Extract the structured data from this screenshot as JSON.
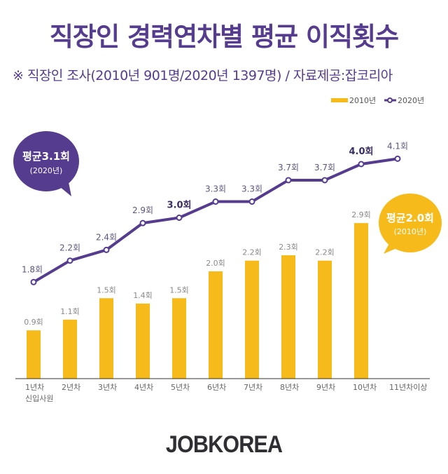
{
  "title": "직장인 경력연차별 평균 이직횟수",
  "subtitle": "※ 직장인 조사(2010년 901명/2020년 1397명) / 자료제공:잡코리아",
  "logo": "JOBKOREA",
  "colors": {
    "purple": "#553c8f",
    "yellow": "#f6bb1a",
    "label_gray": "#8a8a8a"
  },
  "chart_data": {
    "type": "bar+line",
    "categories": [
      "1년차\n신입사원",
      "2년차",
      "3년차",
      "4년차",
      "5년차",
      "6년차",
      "7년차",
      "8년차",
      "9년차",
      "10년차",
      "11년차이상"
    ],
    "series": [
      {
        "name": "2010년",
        "type": "bar",
        "values": [
          0.9,
          1.1,
          1.5,
          1.4,
          1.5,
          2.0,
          2.2,
          2.3,
          2.2,
          2.9,
          null
        ],
        "labels": [
          "0.9회",
          "1.1회",
          "1.5회",
          "1.4회",
          "1.5회",
          "2.0회",
          "2.2회",
          "2.3회",
          "2.2회",
          "2.9회",
          ""
        ]
      },
      {
        "name": "2020년",
        "type": "line",
        "values": [
          1.8,
          2.2,
          2.4,
          2.9,
          3.0,
          3.3,
          3.3,
          3.7,
          3.7,
          4.0,
          4.1
        ],
        "labels": [
          "1.8회",
          "2.2회",
          "2.4회",
          "2.9회",
          "3.0회",
          "3.3회",
          "3.3회",
          "3.7회",
          "3.7회",
          "4.0회",
          "4.1회"
        ]
      }
    ],
    "legend": "top-right",
    "grid": false,
    "annotations": [
      {
        "series": "2020년",
        "text": "평균3.1회",
        "sub": "(2020년)"
      },
      {
        "series": "2010년",
        "text": "평균2.0회",
        "sub": "(2010년)"
      }
    ]
  }
}
